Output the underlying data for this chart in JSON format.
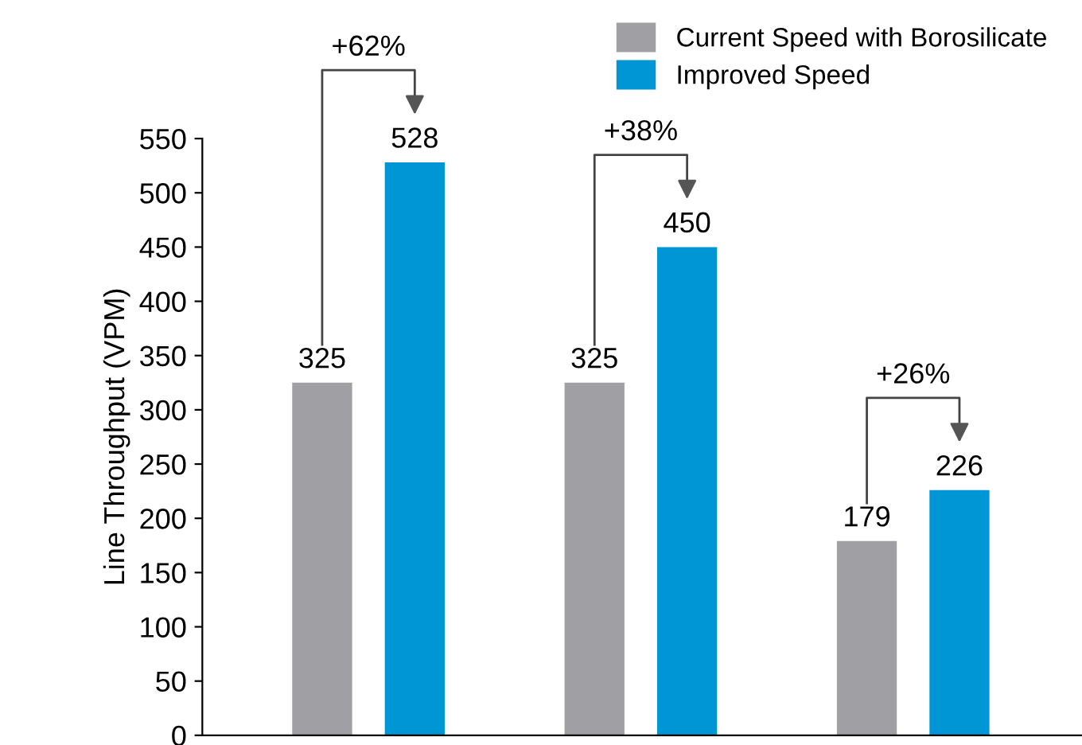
{
  "chart_data": {
    "type": "bar",
    "categories": [
      null,
      null,
      null
    ],
    "series": [
      {
        "name": "Current Speed with Borosilicate",
        "color": "#a0a0a4",
        "values": [
          325,
          325,
          179
        ]
      },
      {
        "name": "Improved Speed",
        "color": "#0096d6",
        "values": [
          528,
          450,
          226
        ]
      }
    ],
    "ylabel": "Line Throughput (VPM)",
    "ylim": [
      0,
      550
    ],
    "yticks": [
      0,
      50,
      100,
      150,
      200,
      250,
      300,
      350,
      400,
      450,
      500,
      550
    ],
    "annotations": [
      "+62%",
      "+38%",
      "+26%"
    ],
    "data_labels": true,
    "legend": "top right",
    "tick_labels": "y"
  }
}
